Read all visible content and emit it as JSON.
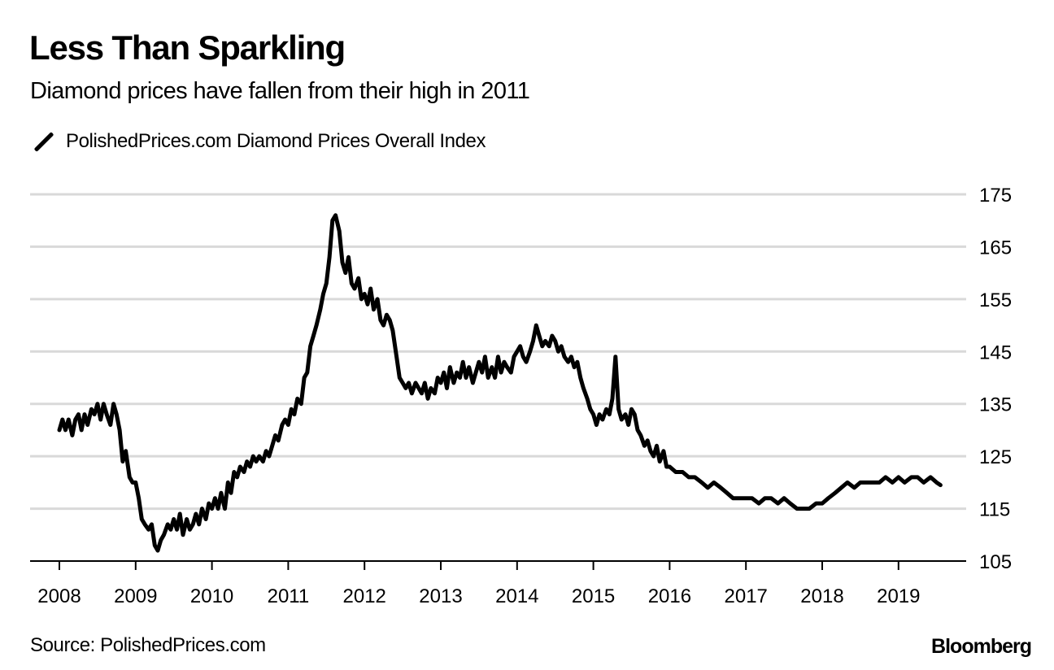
{
  "header": {
    "title": "Less Than Sparkling",
    "subtitle": "Diamond prices have fallen from their high in 2011"
  },
  "legend": {
    "items": [
      {
        "label": "PolishedPrices.com Diamond Prices Overall Index",
        "color": "#000000",
        "icon": "diagonal-line-swatch"
      }
    ]
  },
  "footer": {
    "source": "Source: PolishedPrices.com",
    "brand": "Bloomberg"
  },
  "chart_data": {
    "type": "line",
    "title": "Less Than Sparkling",
    "subtitle": "Diamond prices have fallen from their high in 2011",
    "xlabel": "",
    "ylabel": "",
    "x_ticks": [
      "2008",
      "2009",
      "2010",
      "2011",
      "2012",
      "2013",
      "2014",
      "2015",
      "2016",
      "2017",
      "2018",
      "2019"
    ],
    "y_ticks": [
      105,
      115,
      125,
      135,
      145,
      155,
      165,
      175
    ],
    "ylim": [
      105,
      175
    ],
    "xlim": [
      2008,
      2019.95
    ],
    "grid": true,
    "y_axis_side": "right",
    "legend_position": "top-left",
    "line_color": "#000000",
    "grid_color": "#d9d9d9",
    "series": [
      {
        "name": "PolishedPrices.com Diamond Prices Overall Index",
        "x": [
          2008.0,
          2008.04,
          2008.08,
          2008.12,
          2008.17,
          2008.21,
          2008.25,
          2008.29,
          2008.33,
          2008.37,
          2008.42,
          2008.46,
          2008.5,
          2008.54,
          2008.58,
          2008.62,
          2008.67,
          2008.71,
          2008.75,
          2008.79,
          2008.83,
          2008.87,
          2008.92,
          2008.96,
          2009.0,
          2009.04,
          2009.08,
          2009.12,
          2009.17,
          2009.21,
          2009.25,
          2009.29,
          2009.33,
          2009.37,
          2009.42,
          2009.46,
          2009.5,
          2009.54,
          2009.58,
          2009.62,
          2009.67,
          2009.71,
          2009.75,
          2009.79,
          2009.83,
          2009.87,
          2009.92,
          2009.96,
          2010.0,
          2010.04,
          2010.08,
          2010.12,
          2010.17,
          2010.21,
          2010.25,
          2010.29,
          2010.33,
          2010.37,
          2010.42,
          2010.46,
          2010.5,
          2010.54,
          2010.58,
          2010.62,
          2010.67,
          2010.71,
          2010.75,
          2010.79,
          2010.83,
          2010.87,
          2010.92,
          2010.96,
          2011.0,
          2011.04,
          2011.08,
          2011.12,
          2011.17,
          2011.21,
          2011.25,
          2011.29,
          2011.33,
          2011.37,
          2011.42,
          2011.46,
          2011.5,
          2011.54,
          2011.58,
          2011.62,
          2011.67,
          2011.71,
          2011.75,
          2011.79,
          2011.83,
          2011.87,
          2011.92,
          2011.96,
          2012.0,
          2012.04,
          2012.08,
          2012.12,
          2012.17,
          2012.21,
          2012.25,
          2012.29,
          2012.33,
          2012.37,
          2012.42,
          2012.46,
          2012.5,
          2012.54,
          2012.58,
          2012.62,
          2012.67,
          2012.71,
          2012.75,
          2012.79,
          2012.83,
          2012.87,
          2012.92,
          2012.96,
          2013.0,
          2013.04,
          2013.08,
          2013.12,
          2013.17,
          2013.21,
          2013.25,
          2013.29,
          2013.33,
          2013.37,
          2013.42,
          2013.46,
          2013.5,
          2013.54,
          2013.58,
          2013.62,
          2013.67,
          2013.71,
          2013.75,
          2013.79,
          2013.83,
          2013.87,
          2013.92,
          2013.96,
          2014.0,
          2014.04,
          2014.08,
          2014.12,
          2014.17,
          2014.21,
          2014.25,
          2014.29,
          2014.33,
          2014.37,
          2014.42,
          2014.46,
          2014.5,
          2014.54,
          2014.58,
          2014.62,
          2014.67,
          2014.71,
          2014.75,
          2014.79,
          2014.83,
          2014.87,
          2014.92,
          2014.96,
          2015.0,
          2015.04,
          2015.08,
          2015.12,
          2015.17,
          2015.21,
          2015.25,
          2015.29,
          2015.33,
          2015.37,
          2015.42,
          2015.46,
          2015.5,
          2015.54,
          2015.58,
          2015.62,
          2015.67,
          2015.71,
          2015.75,
          2015.79,
          2015.83,
          2015.87,
          2015.92,
          2015.96,
          2016.0,
          2016.08,
          2016.17,
          2016.25,
          2016.33,
          2016.42,
          2016.5,
          2016.58,
          2016.67,
          2016.75,
          2016.83,
          2016.92,
          2017.0,
          2017.08,
          2017.17,
          2017.25,
          2017.33,
          2017.42,
          2017.5,
          2017.58,
          2017.67,
          2017.75,
          2017.83,
          2017.92,
          2018.0,
          2018.08,
          2018.17,
          2018.25,
          2018.33,
          2018.42,
          2018.5,
          2018.58,
          2018.67,
          2018.75,
          2018.83,
          2018.92,
          2019.0,
          2019.08,
          2019.17,
          2019.25,
          2019.33,
          2019.42,
          2019.5,
          2019.55
        ],
        "y": [
          130,
          132,
          130,
          132,
          129,
          132,
          133,
          130,
          133,
          131,
          134,
          133,
          135,
          132,
          135,
          133,
          131,
          135,
          133,
          130,
          124,
          126,
          121,
          120,
          120,
          117,
          113,
          112,
          111,
          112,
          108,
          107,
          109,
          110,
          112,
          111,
          113,
          111,
          114,
          110,
          113,
          111,
          112,
          114,
          112,
          115,
          113,
          116,
          115,
          117,
          115,
          118,
          115,
          120,
          118,
          122,
          121,
          123,
          122,
          124,
          123,
          125,
          124,
          125,
          124,
          126,
          125,
          127,
          129,
          128,
          131,
          132,
          131,
          134,
          133,
          136,
          135,
          140,
          141,
          146,
          148,
          150,
          153,
          156,
          158,
          163,
          170,
          171,
          168,
          162,
          160,
          163,
          158,
          157,
          159,
          155,
          156,
          154,
          157,
          153,
          155,
          151,
          150,
          152,
          151,
          149,
          144,
          140,
          139,
          138,
          139,
          137,
          139,
          138,
          137,
          139,
          136,
          138,
          137,
          140,
          139,
          141,
          138,
          142,
          139,
          141,
          140,
          143,
          140,
          142,
          139,
          141,
          143,
          141,
          144,
          140,
          142,
          140,
          144,
          141,
          143,
          142,
          141,
          144,
          145,
          146,
          144,
          143,
          145,
          147,
          150,
          148,
          146,
          147,
          146,
          148,
          147,
          145,
          146,
          144,
          143,
          144,
          142,
          143,
          140,
          138,
          136,
          134,
          133,
          131,
          133,
          132,
          134,
          133,
          136,
          144,
          134,
          132,
          133,
          131,
          134,
          133,
          130,
          129,
          127,
          128,
          126,
          125,
          127,
          124,
          126,
          123,
          123,
          122,
          122,
          121,
          121,
          120,
          119,
          120,
          119,
          118,
          117,
          117,
          117,
          117,
          116,
          117,
          117,
          116,
          117,
          116,
          115,
          115,
          115,
          116,
          116,
          117,
          118,
          119,
          120,
          119,
          120,
          120,
          120,
          120,
          121,
          120,
          121,
          120,
          121,
          121,
          120,
          121,
          120,
          119.5
        ]
      }
    ]
  }
}
